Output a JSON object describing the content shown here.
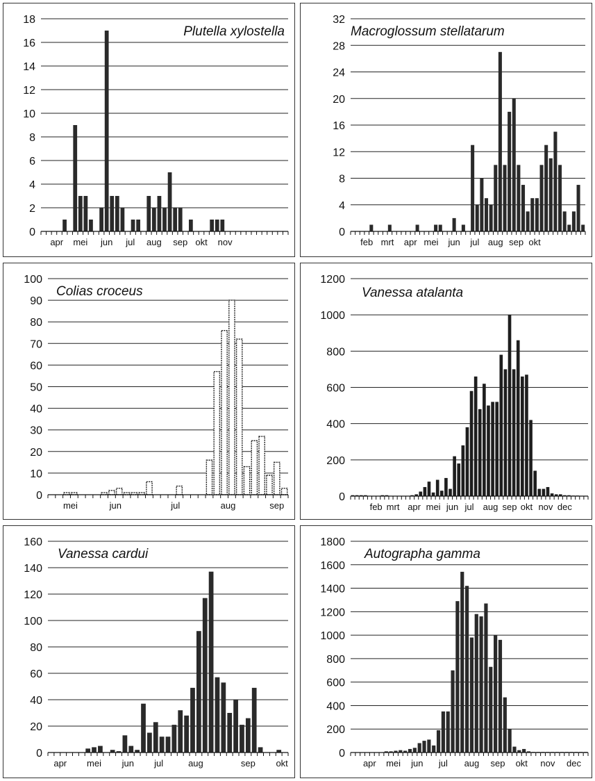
{
  "chart_data": [
    {
      "type": "bar",
      "title": "Plutella xylostella",
      "ylim": [
        0,
        18
      ],
      "yticks": [
        0,
        2,
        4,
        6,
        8,
        10,
        12,
        14,
        16,
        18
      ],
      "months": [
        "apr",
        "mei",
        "jun",
        "jul",
        "aug",
        "sep",
        "okt",
        "nov"
      ],
      "month_positions": [
        3,
        7.5,
        12.5,
        17,
        21.5,
        26.5,
        30.5,
        35
      ],
      "values": [
        0,
        0,
        0,
        0,
        1,
        0,
        9,
        3,
        3,
        1,
        0,
        2,
        17,
        3,
        3,
        2,
        0,
        1,
        1,
        0,
        3,
        2,
        3,
        2,
        5,
        2,
        2,
        0,
        1,
        0,
        0,
        0,
        1,
        1,
        1,
        0,
        0,
        0,
        0,
        0,
        0,
        0,
        0,
        0,
        0,
        0,
        0
      ],
      "grid": true
    },
    {
      "type": "bar",
      "title": "Macroglossum stellatarum",
      "ylim": [
        0,
        32
      ],
      "yticks": [
        0,
        4,
        8,
        12,
        16,
        20,
        24,
        28,
        32
      ],
      "months": [
        "feb",
        "mrt",
        "apr",
        "mei",
        "jun",
        "jul",
        "aug",
        "sep",
        "okt"
      ],
      "month_positions": [
        3.5,
        8,
        13,
        17.5,
        22.5,
        27,
        31.5,
        36,
        40
      ],
      "values": [
        0,
        0,
        0,
        0,
        1,
        0,
        0,
        0,
        1,
        0,
        0,
        0,
        0,
        0,
        1,
        0,
        0,
        0,
        1,
        1,
        0,
        0,
        2,
        0,
        1,
        0,
        13,
        4,
        8,
        5,
        4,
        10,
        27,
        10,
        18,
        20,
        10,
        7,
        3,
        5,
        5,
        10,
        13,
        11,
        15,
        10,
        3,
        1,
        3,
        7,
        1
      ],
      "grid": true
    },
    {
      "type": "bar",
      "title": "Colias croceus",
      "ylim": [
        0,
        100
      ],
      "yticks": [
        0,
        10,
        20,
        30,
        40,
        50,
        60,
        70,
        80,
        90,
        100
      ],
      "months": [
        "mei",
        "jun",
        "jul",
        "aug",
        "sep"
      ],
      "month_positions": [
        3,
        9,
        17,
        24,
        30.5
      ],
      "values": [
        0,
        0,
        1,
        1,
        0,
        0,
        0,
        1,
        2,
        3,
        1,
        1,
        1,
        6,
        0,
        0,
        0,
        4,
        0,
        0,
        0,
        16,
        57,
        76,
        90,
        72,
        13,
        25,
        27,
        9,
        15,
        3
      ],
      "grid": true
    },
    {
      "type": "bar",
      "title": "Vanessa atalanta",
      "ylim": [
        0,
        1200
      ],
      "yticks": [
        0,
        200,
        400,
        600,
        800,
        1000,
        1200
      ],
      "months": [
        "feb",
        "mrt",
        "apr",
        "mei",
        "jun",
        "jul",
        "aug",
        "sep",
        "okt",
        "nov",
        "dec"
      ],
      "month_positions": [
        6,
        10,
        15,
        19.5,
        24,
        28,
        33,
        37.5,
        41.5,
        46,
        50.5
      ],
      "values": [
        5,
        5,
        5,
        5,
        0,
        0,
        0,
        5,
        5,
        0,
        0,
        0,
        0,
        0,
        5,
        10,
        25,
        50,
        80,
        20,
        90,
        30,
        100,
        40,
        220,
        180,
        280,
        380,
        580,
        660,
        480,
        620,
        500,
        520,
        520,
        780,
        700,
        1000,
        700,
        860,
        660,
        670,
        420,
        140,
        40,
        40,
        50,
        15,
        10,
        10,
        5,
        5,
        3,
        3,
        2,
        2
      ],
      "grid": true
    },
    {
      "type": "bar",
      "title": "Vanessa cardui",
      "ylim": [
        0,
        160
      ],
      "yticks": [
        0,
        20,
        40,
        60,
        80,
        100,
        120,
        140,
        160
      ],
      "months": [
        "apr",
        "mei",
        "jun",
        "jul",
        "aug",
        "sep",
        "okt"
      ],
      "month_positions": [
        2,
        7.5,
        13,
        18,
        24,
        32.5,
        38
      ],
      "values": [
        0,
        0,
        0,
        0,
        0,
        0,
        3,
        4,
        5,
        0,
        2,
        1,
        13,
        5,
        2,
        37,
        15,
        23,
        12,
        12,
        21,
        32,
        28,
        49,
        92,
        117,
        137,
        57,
        53,
        30,
        40,
        21,
        26,
        49,
        4,
        0,
        0,
        2,
        0
      ],
      "grid": true
    },
    {
      "type": "bar",
      "title": "Autographa gamma",
      "ylim": [
        0,
        1800
      ],
      "yticks": [
        0,
        200,
        400,
        600,
        800,
        1000,
        1200,
        1400,
        1600,
        1800
      ],
      "months": [
        "apr",
        "mei",
        "jun",
        "jul",
        "aug",
        "sep",
        "okt",
        "nov",
        "dec"
      ],
      "month_positions": [
        4,
        9,
        14,
        19.5,
        25.5,
        31,
        36,
        41.5,
        47
      ],
      "values": [
        0,
        0,
        0,
        0,
        0,
        0,
        0,
        10,
        10,
        15,
        20,
        15,
        30,
        40,
        80,
        100,
        110,
        60,
        190,
        350,
        350,
        700,
        1290,
        1540,
        1420,
        980,
        1180,
        1160,
        1270,
        730,
        1000,
        960,
        470,
        200,
        50,
        20,
        30,
        10,
        5,
        5,
        5,
        5,
        5,
        5,
        5,
        5,
        5,
        5,
        5,
        5
      ],
      "grid": true
    }
  ]
}
